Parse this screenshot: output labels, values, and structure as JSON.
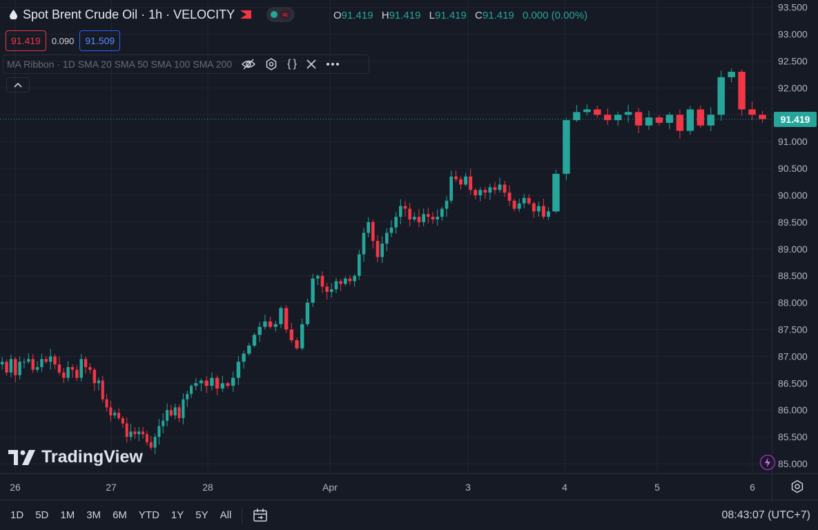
{
  "header": {
    "title": "Spot Brent Crude Oil · 1h · VELOCITY",
    "ohlc": [
      {
        "k": "O",
        "v": "91.419"
      },
      {
        "k": "H",
        "v": "91.419"
      },
      {
        "k": "L",
        "v": "91.419"
      },
      {
        "k": "C",
        "v": "91.419"
      }
    ],
    "change": "0.000 (0.00%)"
  },
  "trade": {
    "sell": "91.419",
    "spread": "0.090",
    "buy": "91.509"
  },
  "indicator": {
    "label": "MA Ribbon · 1D SMA 20 SMA 50 SMA 100 SMA 200"
  },
  "branding": {
    "logo_text": "TradingView"
  },
  "last_price": "91.419",
  "bottom": {
    "timeframes": [
      "1D",
      "5D",
      "1M",
      "3M",
      "6M",
      "YTD",
      "1Y",
      "5Y",
      "All"
    ],
    "clock": "08:43:07 (UTC+7)"
  },
  "colors": {
    "up": "#26a69a",
    "down": "#f23645",
    "background": "#161a25",
    "grid": "#232632"
  },
  "chart_data": {
    "type": "candlestick",
    "y_ticks": [
      "85.000",
      "85.500",
      "86.000",
      "86.500",
      "87.000",
      "87.500",
      "88.000",
      "88.500",
      "89.000",
      "89.500",
      "90.000",
      "90.500",
      "91.000",
      "91.500",
      "92.000",
      "92.500",
      "93.000",
      "93.500"
    ],
    "x_ticks": [
      "26",
      "27",
      "28",
      "Apr",
      "3",
      "4",
      "5",
      "6"
    ],
    "ylim": [
      85.0,
      93.5
    ],
    "last": 91.419,
    "segments": [
      [
        86.9,
        86.7,
        86.95,
        86.65,
        86.9,
        86.9,
        86.95,
        86.75,
        86.8,
        86.95,
        86.9,
        87.0,
        86.85,
        86.7,
        86.6,
        86.8,
        86.75,
        86.6,
        86.95,
        86.8,
        86.75,
        86.5
      ],
      [
        86.55,
        86.2,
        86.05,
        85.9,
        85.95,
        85.85,
        85.75,
        85.5,
        85.6,
        85.55,
        85.6,
        85.55,
        85.4,
        85.3,
        85.5,
        85.7,
        85.8,
        86.0,
        85.9,
        86.05,
        85.85,
        86.2,
        86.3,
        86.45
      ],
      [
        86.5,
        86.55,
        86.45,
        86.6,
        86.4,
        86.5,
        86.45,
        86.6,
        86.9,
        87.05,
        87.2,
        87.4,
        87.55,
        87.65,
        87.55,
        87.6,
        87.9,
        87.5,
        87.3,
        87.15,
        87.6,
        88.0,
        88.45
      ],
      [
        88.5,
        88.3,
        88.2,
        88.25,
        88.4,
        88.35,
        88.45,
        88.4,
        88.5,
        88.9,
        89.3,
        89.5,
        89.15,
        88.85,
        89.1,
        89.3,
        89.4,
        89.6,
        89.8,
        89.75,
        89.55,
        89.6,
        89.5,
        89.65,
        89.6,
        89.55,
        89.6,
        89.75,
        89.9,
        90.35
      ],
      [
        90.3,
        90.2,
        90.35,
        90.1,
        90.0,
        90.1,
        90.05,
        90.15,
        90.1,
        90.2,
        90.05,
        89.9,
        89.75,
        89.85,
        89.95,
        89.85,
        89.7,
        89.8,
        89.6,
        89.7
      ],
      [
        90.4,
        91.4,
        91.55,
        91.6,
        91.5,
        91.4,
        91.5,
        91.55,
        91.3,
        91.45,
        91.35,
        91.5,
        91.2,
        91.6,
        91.3,
        91.5,
        92.2,
        92.3,
        91.6,
        91.5,
        91.419
      ]
    ]
  }
}
